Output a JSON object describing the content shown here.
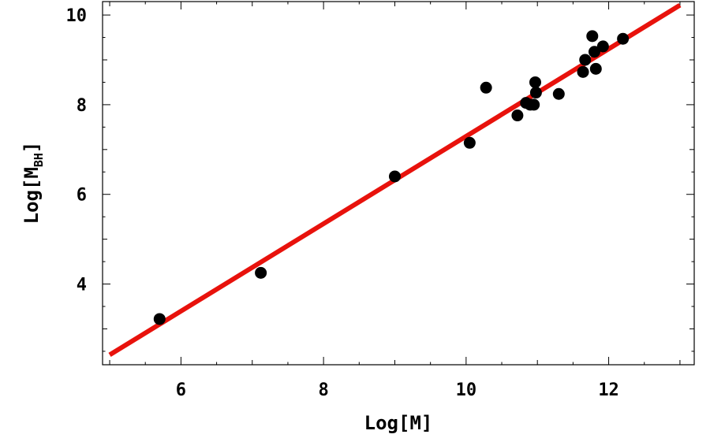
{
  "chart_data": {
    "type": "scatter",
    "xlabel": "Log[M]",
    "ylabel_main": "Log[M",
    "ylabel_sub": "BH",
    "ylabel_close": "]",
    "xlim": [
      4.9,
      13.2
    ],
    "ylim": [
      2.2,
      10.3
    ],
    "x_ticks": [
      6,
      8,
      10,
      12
    ],
    "y_ticks": [
      4,
      6,
      8,
      10
    ],
    "x_tick_labels": [
      "6",
      "8",
      "10",
      "12"
    ],
    "y_tick_labels": [
      "4",
      "6",
      "8",
      "10"
    ],
    "grid": false,
    "colors": {
      "points": "#000000",
      "fit_line": "#e8120c",
      "frame": "#000000"
    },
    "series": [
      {
        "type": "scatter",
        "points": [
          {
            "x": 5.7,
            "y": 3.22
          },
          {
            "x": 7.12,
            "y": 4.25
          },
          {
            "x": 9.0,
            "y": 6.4
          },
          {
            "x": 10.05,
            "y": 7.15
          },
          {
            "x": 10.28,
            "y": 8.38
          },
          {
            "x": 10.72,
            "y": 7.76
          },
          {
            "x": 10.84,
            "y": 8.04
          },
          {
            "x": 10.9,
            "y": 8.0
          },
          {
            "x": 10.95,
            "y": 8.0
          },
          {
            "x": 10.97,
            "y": 8.5
          },
          {
            "x": 10.98,
            "y": 8.27
          },
          {
            "x": 11.3,
            "y": 8.24
          },
          {
            "x": 11.64,
            "y": 8.73
          },
          {
            "x": 11.67,
            "y": 9.0
          },
          {
            "x": 11.77,
            "y": 9.53
          },
          {
            "x": 11.8,
            "y": 9.18
          },
          {
            "x": 11.82,
            "y": 8.8
          },
          {
            "x": 11.92,
            "y": 9.3
          },
          {
            "x": 12.2,
            "y": 9.47
          }
        ]
      },
      {
        "type": "line",
        "points": [
          {
            "x": 5.0,
            "y": 2.42
          },
          {
            "x": 13.0,
            "y": 10.22
          }
        ]
      }
    ]
  }
}
